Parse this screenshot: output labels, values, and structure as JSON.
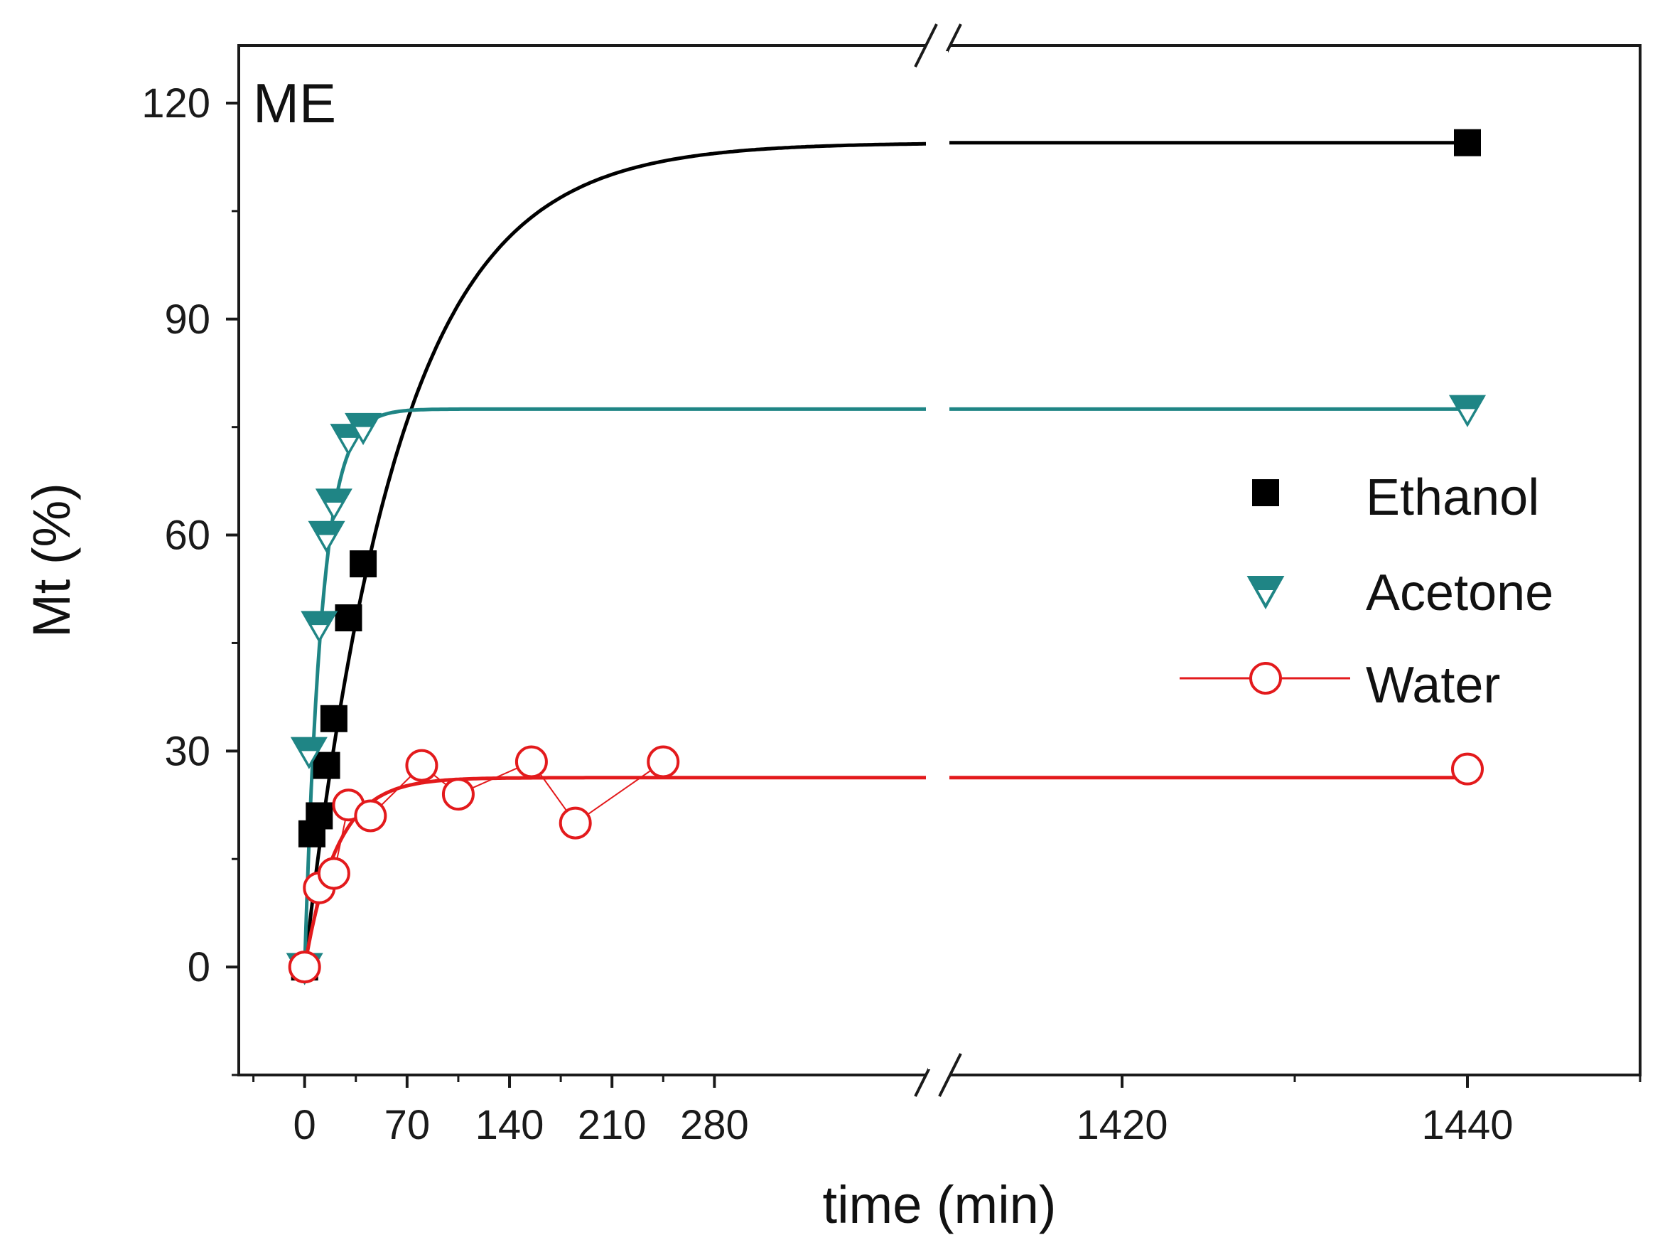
{
  "chart_data": {
    "type": "scatter",
    "panel_label": "ME",
    "xlabel": "time (min)",
    "ylabel": "Mt (%)",
    "ylim": [
      -15,
      128
    ],
    "yticks": [
      0,
      30,
      60,
      90,
      120
    ],
    "x_axis_break": true,
    "x_segments": [
      {
        "range": [
          -45,
          425
        ],
        "ticks": [
          0,
          70,
          140,
          210,
          280
        ]
      },
      {
        "range": [
          1410,
          1450
        ],
        "ticks": [
          1420,
          1440
        ]
      }
    ],
    "legend_position": "right",
    "series": [
      {
        "name": "Ethanol",
        "marker": "filled-square",
        "color": "#000000",
        "points": [
          {
            "x": 0,
            "y": 0
          },
          {
            "x": 5,
            "y": 18.5
          },
          {
            "x": 10,
            "y": 21
          },
          {
            "x": 15,
            "y": 28
          },
          {
            "x": 20,
            "y": 34.5
          },
          {
            "x": 30,
            "y": 48.5
          },
          {
            "x": 40,
            "y": 56
          },
          {
            "x": 1440,
            "y": 114.5
          }
        ],
        "fit": {
          "model": "first-order",
          "plateau": 114.5,
          "k": 0.0155
        }
      },
      {
        "name": "Acetone",
        "marker": "down-triangle-half-filled",
        "color": "#1f8585",
        "points": [
          {
            "x": 0,
            "y": 0
          },
          {
            "x": 3,
            "y": 30
          },
          {
            "x": 10,
            "y": 47.5
          },
          {
            "x": 15,
            "y": 60
          },
          {
            "x": 20,
            "y": 64.5
          },
          {
            "x": 30,
            "y": 73.5
          },
          {
            "x": 40,
            "y": 75
          },
          {
            "x": 1440,
            "y": 77.5
          }
        ],
        "fit": {
          "model": "first-order",
          "plateau": 77.5,
          "k": 0.085
        }
      },
      {
        "name": "Water",
        "marker": "open-circle",
        "color": "#e31a1c",
        "points": [
          {
            "x": 0,
            "y": 0
          },
          {
            "x": 10,
            "y": 11
          },
          {
            "x": 20,
            "y": 13
          },
          {
            "x": 30,
            "y": 22.5
          },
          {
            "x": 45,
            "y": 21
          },
          {
            "x": 80,
            "y": 28
          },
          {
            "x": 105,
            "y": 24
          },
          {
            "x": 155,
            "y": 28.5
          },
          {
            "x": 185,
            "y": 20
          },
          {
            "x": 245,
            "y": 28.5
          },
          {
            "x": 1440,
            "y": 27.5
          }
        ],
        "fit": {
          "model": "first-order",
          "plateau": 26.3,
          "k": 0.045
        }
      }
    ]
  }
}
